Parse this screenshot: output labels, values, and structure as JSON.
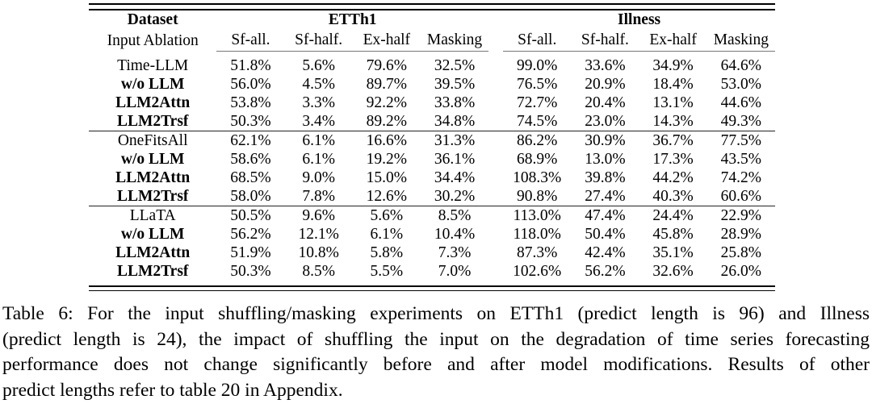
{
  "table": {
    "corner": {
      "dataset_label": "Dataset",
      "input_ablation_label": "Input Ablation"
    },
    "col_groups": [
      {
        "label": "ETTh1"
      },
      {
        "label": "Illness"
      }
    ],
    "subcolumns": [
      "Sf-all.",
      "Sf-half.",
      "Ex-half",
      "Masking"
    ],
    "groups": [
      {
        "rows": [
          {
            "label": "Time-LLM",
            "bold": false,
            "etth1": [
              "51.8%",
              "5.6%",
              "79.6%",
              "32.5%"
            ],
            "illness": [
              "99.0%",
              "33.6%",
              "34.9%",
              "64.6%"
            ]
          },
          {
            "label": "w/o LLM",
            "bold": true,
            "etth1": [
              "56.0%",
              "4.5%",
              "89.7%",
              "39.5%"
            ],
            "illness": [
              "76.5%",
              "20.9%",
              "18.4%",
              "53.0%"
            ]
          },
          {
            "label": "LLM2Attn",
            "bold": true,
            "etth1": [
              "53.8%",
              "3.3%",
              "92.2%",
              "33.8%"
            ],
            "illness": [
              "72.7%",
              "20.4%",
              "13.1%",
              "44.6%"
            ]
          },
          {
            "label": "LLM2Trsf",
            "bold": true,
            "etth1": [
              "50.3%",
              "3.4%",
              "89.2%",
              "34.8%"
            ],
            "illness": [
              "74.5%",
              "23.0%",
              "14.3%",
              "49.3%"
            ]
          }
        ]
      },
      {
        "rows": [
          {
            "label": "OneFitsAll",
            "bold": false,
            "etth1": [
              "62.1%",
              "6.1%",
              "16.6%",
              "31.3%"
            ],
            "illness": [
              "86.2%",
              "30.9%",
              "36.7%",
              "77.5%"
            ]
          },
          {
            "label": "w/o LLM",
            "bold": true,
            "etth1": [
              "58.6%",
              "6.1%",
              "19.2%",
              "36.1%"
            ],
            "illness": [
              "68.9%",
              "13.0%",
              "17.3%",
              "43.5%"
            ]
          },
          {
            "label": "LLM2Attn",
            "bold": true,
            "etth1": [
              "68.5%",
              "9.0%",
              "15.0%",
              "34.4%"
            ],
            "illness": [
              "108.3%",
              "39.8%",
              "44.2%",
              "74.2%"
            ]
          },
          {
            "label": "LLM2Trsf",
            "bold": true,
            "etth1": [
              "58.0%",
              "7.8%",
              "12.6%",
              "30.2%"
            ],
            "illness": [
              "90.8%",
              "27.4%",
              "40.3%",
              "60.6%"
            ]
          }
        ]
      },
      {
        "rows": [
          {
            "label": "LLaTA",
            "bold": false,
            "etth1": [
              "50.5%",
              "9.6%",
              "5.6%",
              "8.5%"
            ],
            "illness": [
              "113.0%",
              "47.4%",
              "24.4%",
              "22.9%"
            ]
          },
          {
            "label": "w/o LLM",
            "bold": true,
            "etth1": [
              "56.2%",
              "12.1%",
              "6.1%",
              "10.4%"
            ],
            "illness": [
              "118.0%",
              "50.4%",
              "45.8%",
              "28.9%"
            ]
          },
          {
            "label": "LLM2Attn",
            "bold": true,
            "etth1": [
              "51.9%",
              "10.8%",
              "5.8%",
              "7.3%"
            ],
            "illness": [
              "87.3%",
              "42.4%",
              "35.1%",
              "25.8%"
            ]
          },
          {
            "label": "LLM2Trsf",
            "bold": true,
            "etth1": [
              "50.3%",
              "8.5%",
              "5.5%",
              "7.0%"
            ],
            "illness": [
              "102.6%",
              "56.2%",
              "32.6%",
              "26.0%"
            ]
          }
        ]
      }
    ]
  },
  "caption": {
    "lines": [
      "Table 6: For the input shuffling/masking experiments on ETTh1 (predict length is 96) and Illness",
      "(predict length is 24), the impact of shuffling the input on the degradation of time series forecasting",
      "performance does not change significantly before and after model modifications. Results of other",
      "predict lengths refer to table 20 in Appendix."
    ]
  }
}
